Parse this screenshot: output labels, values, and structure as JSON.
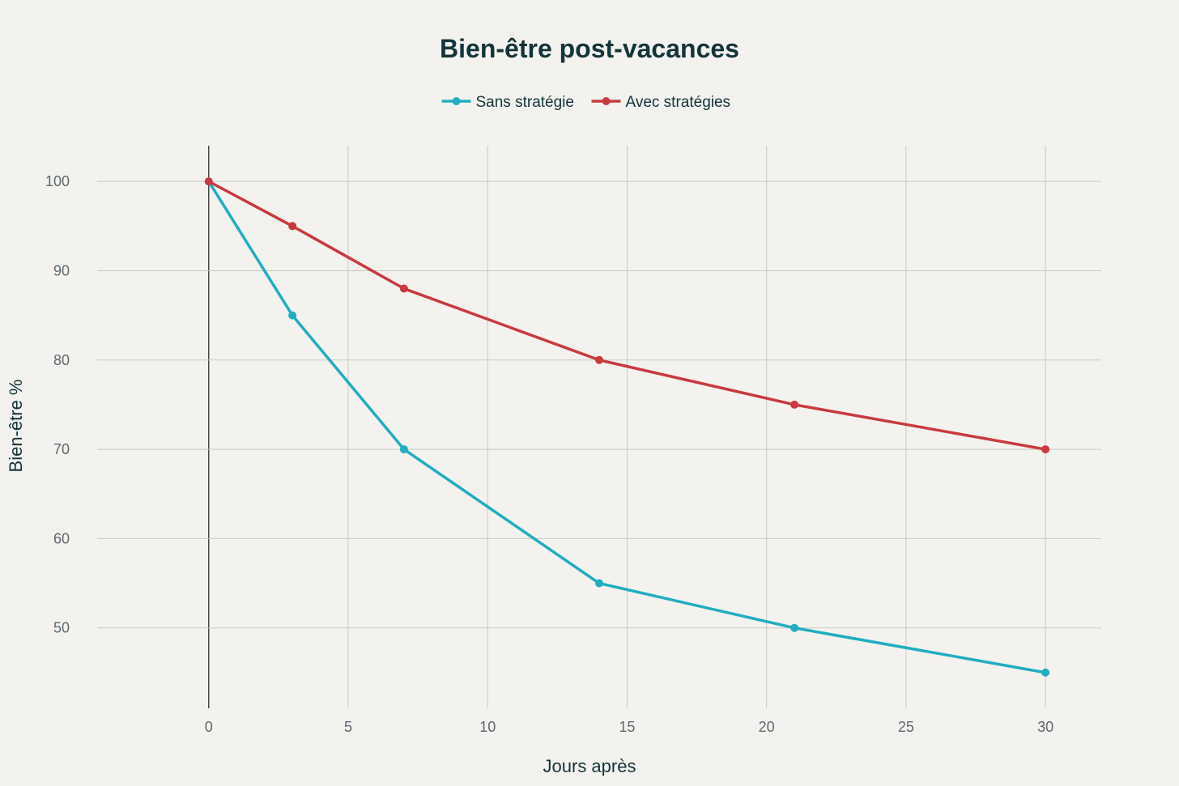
{
  "chart_data": {
    "type": "line",
    "title": "Bien-être post-vacances",
    "xlabel": "Jours après",
    "ylabel": "Bien-être %",
    "x": [
      0,
      3,
      7,
      14,
      21,
      30
    ],
    "xlim": [
      -4,
      32
    ],
    "ylim": [
      41,
      104
    ],
    "xticks": [
      0,
      5,
      10,
      15,
      20,
      25,
      30
    ],
    "yticks": [
      50,
      60,
      70,
      80,
      90,
      100
    ],
    "grid": true,
    "legend_position": "top-center",
    "series": [
      {
        "name": "Sans stratégie",
        "color": "#21adc0",
        "values": [
          100,
          85,
          70,
          55,
          50,
          45
        ]
      },
      {
        "name": "Avec stratégies",
        "color": "#c83a3f",
        "values": [
          100,
          95,
          88,
          80,
          75,
          70
        ]
      }
    ]
  }
}
